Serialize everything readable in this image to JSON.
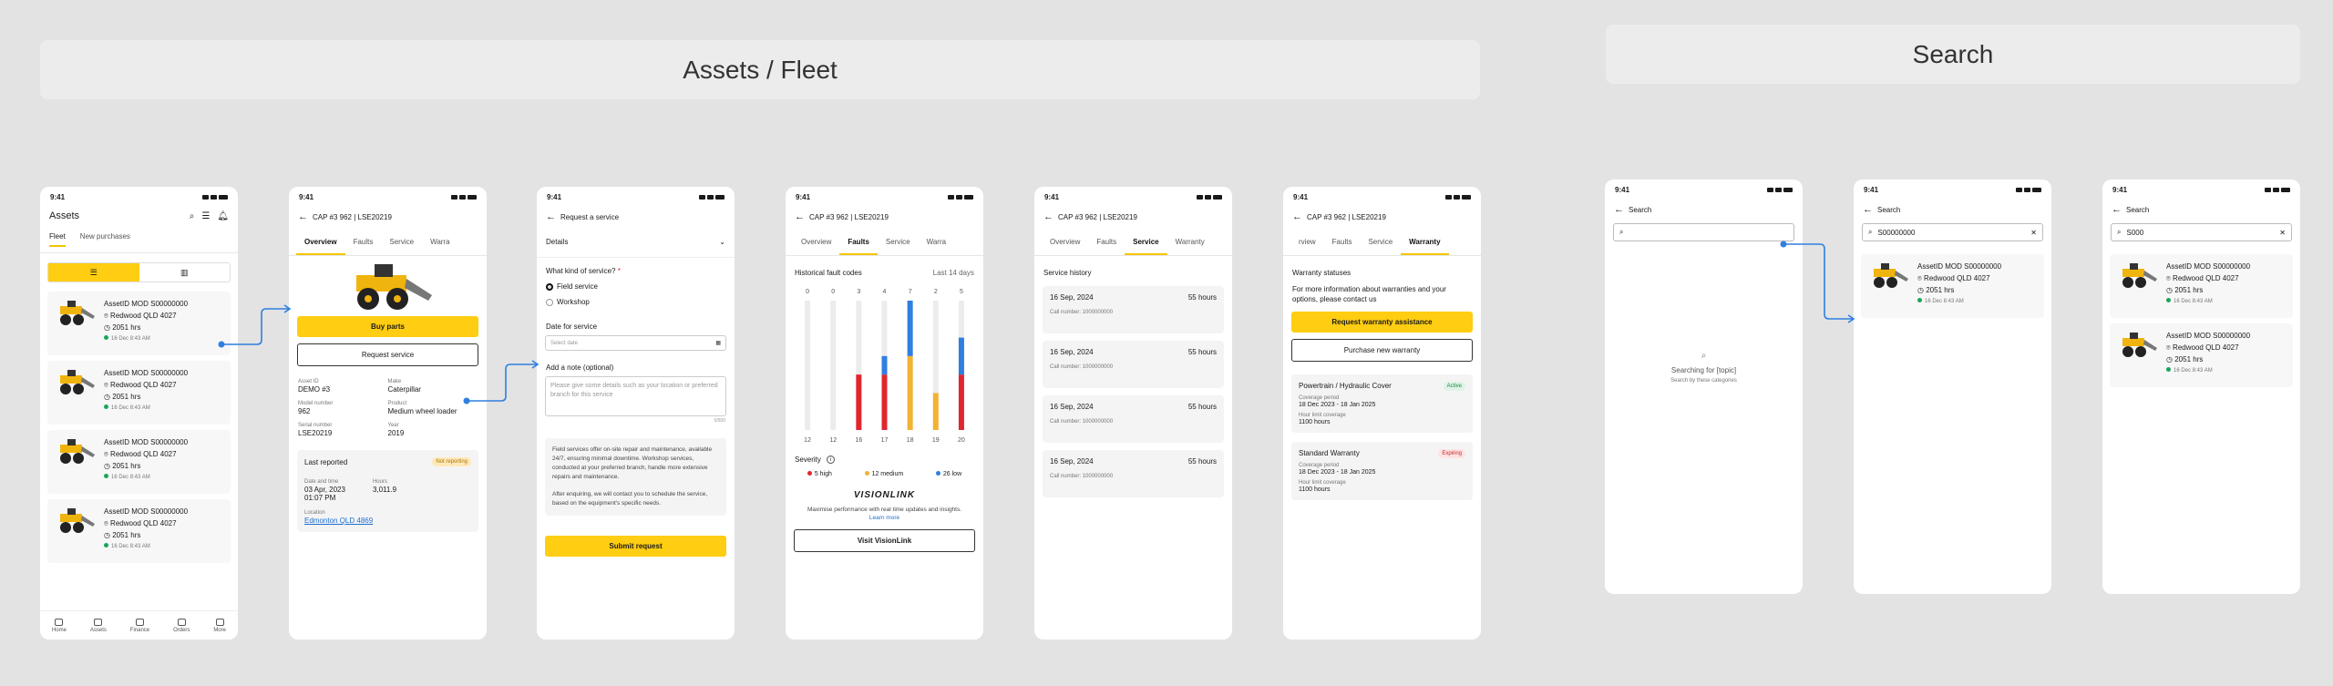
{
  "banners": {
    "assets_fleet": "Assets / Fleet",
    "search": "Search"
  },
  "status_time": "9:41",
  "phone1": {
    "title": "Assets",
    "tabs": [
      "Fleet",
      "New purchases"
    ],
    "assets": [
      {
        "id": "AssetID MOD S00000000",
        "loc": "Redwood QLD 4027",
        "hrs": "2051 hrs",
        "time": "16 Dec 8:43 AM"
      },
      {
        "id": "AssetID MOD S00000000",
        "loc": "Redwood QLD 4027",
        "hrs": "2051 hrs",
        "time": "16 Dec 8:43 AM"
      },
      {
        "id": "AssetID MOD S00000000",
        "loc": "Redwood QLD 4027",
        "hrs": "2051 hrs",
        "time": "16 Dec 8:43 AM"
      },
      {
        "id": "AssetID MOD S00000000",
        "loc": "Redwood QLD 4027",
        "hrs": "2051 hrs",
        "time": "16 Dec 8:43 AM"
      }
    ],
    "nav": [
      "Home",
      "Assets",
      "Finance",
      "Orders",
      "More"
    ]
  },
  "phone2": {
    "title": "CAP #3 962 | LSE20219",
    "tabs": [
      "Overview",
      "Faults",
      "Service",
      "Warra"
    ],
    "buy": "Buy parts",
    "request": "Request  service",
    "fields": [
      {
        "l": "Asset ID",
        "v": "DEMO #3"
      },
      {
        "l": "Make",
        "v": "Caterpillar"
      },
      {
        "l": "Model number",
        "v": "962"
      },
      {
        "l": "Product",
        "v": "Medium wheel loader"
      },
      {
        "l": "Serial number",
        "v": "LSE20219"
      },
      {
        "l": "Year",
        "v": "2019"
      }
    ],
    "last_reported": "Last reported",
    "not_reporting": "Not reporting",
    "date_label": "Date and time",
    "date_value": "03 Apr, 2023\n01:07 PM",
    "hours_label": "Hours",
    "hours_value": "3,011.9",
    "location_label": "Location",
    "location_value": "Edmonton QLD 4869"
  },
  "phone3": {
    "title": "Request a service",
    "details": "Details",
    "question": "What kind of service?",
    "opt1": "Field service",
    "opt2": "Workshop",
    "date_label": "Date for service",
    "date_placeholder": "Select date",
    "note_label": "Add a note (optional)",
    "note_placeholder": "Please give some details such as your location or preferred branch for this service",
    "counter": "0/500",
    "info1": "Field services offer on-site repair and maintenance, available 24/7, ensuring minimal downtime. Workshop services, conducted at your preferred branch, handle more extensive repairs and maintenance.",
    "info2": "After enquiring, we will contact you to schedule the service, based on the equipment's specific needs.",
    "submit": "Submit request"
  },
  "phone4": {
    "title": "CAP #3 962 | LSE20219",
    "tabs": [
      "Overview",
      "Faults",
      "Service",
      "Warra"
    ],
    "hist": "Historical fault codes",
    "range": "Last 14 days",
    "severity": "Severity",
    "legend": [
      "5 high",
      "12 medium",
      "26 low"
    ],
    "brand": "VISIONLINK",
    "promo": "Maximise performance with real time updates and insights.",
    "learn": "Learn more",
    "visit": "Visit VisionLink"
  },
  "chart_data": {
    "type": "bar",
    "categories": [
      "12",
      "12",
      "16",
      "17",
      "18",
      "19",
      "20"
    ],
    "totals": [
      "0",
      "0",
      "3",
      "4",
      "7",
      "2",
      "5"
    ],
    "series": [
      {
        "name": "5 high",
        "color": "#e0262e",
        "values": [
          0,
          0,
          3,
          3,
          0,
          0,
          3
        ]
      },
      {
        "name": "12 medium",
        "color": "#f2b233",
        "values": [
          0,
          0,
          0,
          0,
          4,
          2,
          0
        ]
      },
      {
        "name": "26 low",
        "color": "#2f7fe0",
        "values": [
          0,
          0,
          0,
          1,
          3,
          0,
          2
        ]
      }
    ],
    "ylim": [
      0,
      7
    ]
  },
  "phone5": {
    "title": "CAP #3 962 | LSE20219",
    "tabs": [
      "Overview",
      "Faults",
      "Service",
      "Warranty"
    ],
    "hist": "Service history",
    "items": [
      {
        "date": "16 Sep, 2024",
        "hours": "55 hours",
        "call": "Call number: 1000000000"
      },
      {
        "date": "16 Sep, 2024",
        "hours": "55 hours",
        "call": "Call number: 1000000000"
      },
      {
        "date": "16 Sep, 2024",
        "hours": "55 hours",
        "call": "Call number: 1000000000"
      },
      {
        "date": "16 Sep, 2024",
        "hours": "55 hours",
        "call": "Call number: 1000000000"
      }
    ]
  },
  "phone6": {
    "title": "CAP #3 962 | LSE20219",
    "tabs": [
      "rview",
      "Faults",
      "Service",
      "Warranty"
    ],
    "statuses": "Warranty statuses",
    "info": "For more information about warranties and your options, please contact us",
    "req": "Request warranty assistance",
    "purchase": "Purchase new warranty",
    "w1": {
      "name": "Powertrain / Hydraulic Cover",
      "badge": "Active",
      "cp": "Coverage period",
      "dates": "18 Dec 2023 - 18 Jan 2025",
      "hl": "Hour limit coverage",
      "hours": "1100 hours"
    },
    "w2": {
      "name": "Standard Warranty",
      "badge": "Expiring",
      "cp": "Coverage period",
      "dates": "18 Dec 2023 - 18 Jan 2025",
      "hl": "Hour limit coverage",
      "hours": "1100 hours"
    }
  },
  "search1": {
    "back": "Search",
    "searching": "Searching for [topic]",
    "sub": "Search by these categories"
  },
  "search2": {
    "back": "Search",
    "query": "S00000000",
    "result": {
      "id": "AssetID MOD S00000000",
      "loc": "Redwood QLD 4027",
      "hrs": "2051 hrs",
      "time": "16 Dec 8:43 AM"
    }
  },
  "search3": {
    "back": "Search",
    "query": "S000",
    "results": [
      {
        "id": "AssetID MOD S00000000",
        "loc": "Redwood QLD 4027",
        "hrs": "2051 hrs",
        "time": "16 Dec 8:43 AM"
      },
      {
        "id": "AssetID MOD S00000000",
        "loc": "Redwood QLD 4027",
        "hrs": "2051 hrs",
        "time": "16 Dec 8:43 AM"
      }
    ]
  }
}
